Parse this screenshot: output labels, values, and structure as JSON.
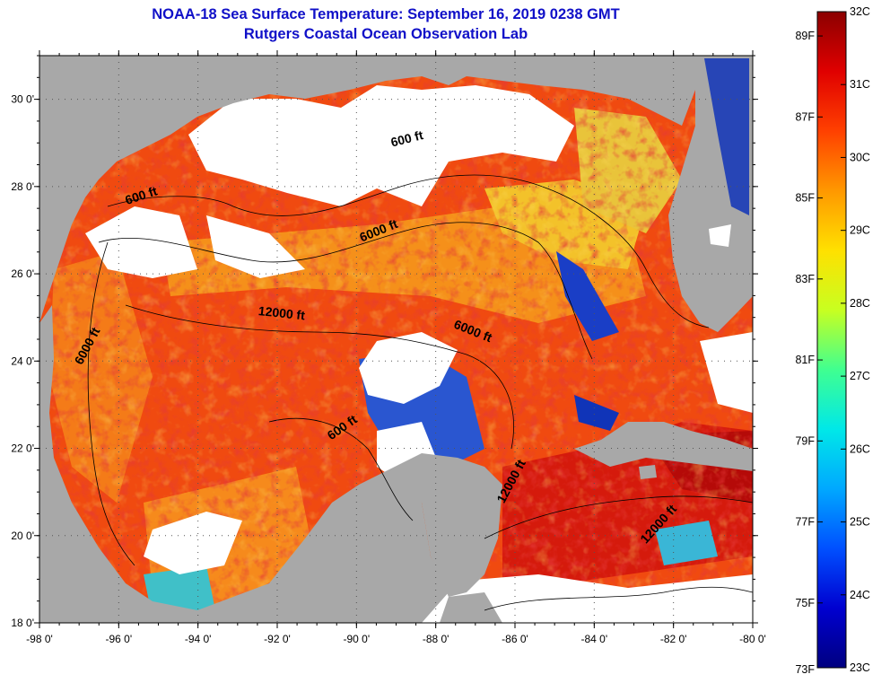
{
  "title_line1": "NOAA-18 Sea Surface Temperature:  September 16, 2019 0238 GMT",
  "title_line2": "Rutgers Coastal Ocean Observation Lab",
  "colors": {
    "title": "#1010c8",
    "land": "#a8a8a8",
    "cloud": "#ffffff",
    "warm_water": "#f04a10",
    "hot_water": "#c80e0a",
    "mid_water": "#f6a21a",
    "cool_water": "#0b2fb8",
    "cyan_water": "#37c8d8"
  },
  "chart_data": {
    "type": "heatmap",
    "title": "NOAA-18 Sea Surface Temperature:  September 16, 2019 0238 GMT",
    "subtitle": "Rutgers Coastal Ocean Observation Lab",
    "x_ticks": [
      "-98 0'",
      "-96 0'",
      "-94 0'",
      "-92 0'",
      "-90 0'",
      "-88 0'",
      "-86 0'",
      "-84 0'",
      "-82 0'",
      "-80 0'"
    ],
    "y_ticks": [
      "30 0'",
      "28 0'",
      "26 0'",
      "24 0'",
      "22 0'",
      "20 0'",
      "18 0'"
    ],
    "xlim": [
      -98,
      -80
    ],
    "ylim": [
      18,
      31
    ],
    "contour_labels": [
      {
        "text": "600 ft",
        "lon": -88.7,
        "lat": 29.0,
        "angle": -14
      },
      {
        "text": "600 ft",
        "lon": -95.4,
        "lat": 27.7,
        "angle": -18
      },
      {
        "text": "6000 ft",
        "lon": -89.4,
        "lat": 26.9,
        "angle": -22
      },
      {
        "text": "12000 ft",
        "lon": -91.9,
        "lat": 25.0,
        "angle": 6
      },
      {
        "text": "6000 ft",
        "lon": -87.1,
        "lat": 24.6,
        "angle": 22
      },
      {
        "text": "6000 ft",
        "lon": -96.7,
        "lat": 24.3,
        "angle": -62
      },
      {
        "text": "600 ft",
        "lon": -90.3,
        "lat": 22.4,
        "angle": -35
      },
      {
        "text": "12000 ft",
        "lon": -86.0,
        "lat": 21.2,
        "angle": -62
      },
      {
        "text": "12000 ft",
        "lon": -82.3,
        "lat": 20.2,
        "angle": -48
      }
    ],
    "colorbar": {
      "celsius_labels": [
        "32C",
        "31C",
        "30C",
        "29C",
        "28C",
        "27C",
        "26C",
        "25C",
        "24C",
        "23C"
      ],
      "fahrenheit_labels": [
        "89F",
        "87F",
        "85F",
        "83F",
        "81F",
        "79F",
        "77F",
        "75F",
        "73F"
      ],
      "c_range": [
        23,
        32
      ],
      "colors": [
        "#000080",
        "#0000d0",
        "#0050ff",
        "#00a8ff",
        "#00e8e8",
        "#40ff90",
        "#c8ff20",
        "#ffe000",
        "#ff9800",
        "#ff4000",
        "#e00000",
        "#8b0000"
      ]
    }
  }
}
